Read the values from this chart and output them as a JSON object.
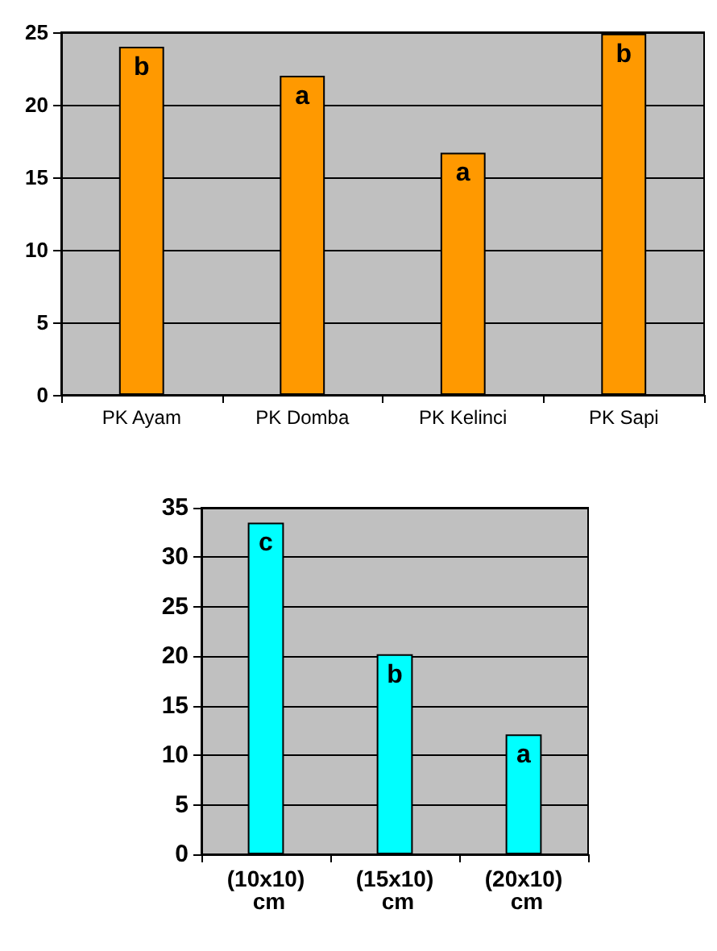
{
  "chart_data": [
    {
      "type": "bar",
      "categories": [
        "PK Ayam",
        "PK Domba",
        "PK Kelinci",
        "PK Sapi"
      ],
      "values": [
        24,
        22,
        16.7,
        24.9
      ],
      "color": "#ff9900",
      "value_labels": [
        "b",
        "a",
        "a",
        "b"
      ],
      "ylim": [
        0,
        25
      ],
      "yticks": [
        0,
        5,
        10,
        15,
        20,
        25
      ],
      "grid": "y"
    },
    {
      "type": "bar",
      "categories": [
        "(10x10) cm",
        "(15x10) cm",
        "(20x10) cm"
      ],
      "values": [
        33.5,
        20.2,
        12.1
      ],
      "color": "#00ffff",
      "value_labels": [
        "c",
        "b",
        "a"
      ],
      "ylim": [
        0,
        35
      ],
      "yticks": [
        0,
        5,
        10,
        15,
        20,
        25,
        30,
        35
      ],
      "grid": "y"
    }
  ]
}
